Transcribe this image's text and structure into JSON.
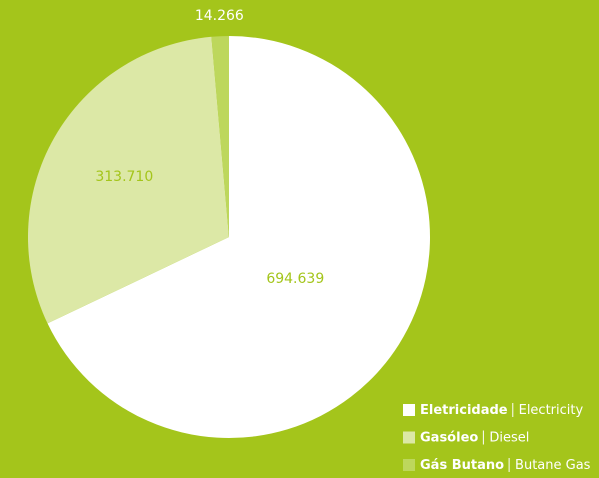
{
  "chart_data": {
    "type": "pie",
    "categories": [
      "Eletricidade",
      "Gasóleo",
      "Gás Butano"
    ],
    "categories_en": [
      "Electricity",
      "Diesel",
      "Butane Gas"
    ],
    "values": [
      694639,
      313710,
      14266
    ],
    "value_labels": [
      "694.639",
      "313.710",
      "14.266"
    ],
    "colors": [
      "#ffffff",
      "#dce8a6",
      "#bdd75c"
    ],
    "background": "#a4c51b",
    "label_colors": [
      "#a4c51b",
      "#a4c51b",
      "#ffffff"
    ],
    "legend": "bottom-right"
  }
}
